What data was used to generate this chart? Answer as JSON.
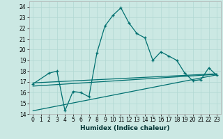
{
  "title": "",
  "xlabel": "Humidex (Indice chaleur)",
  "background_color": "#cbe8e3",
  "line_color": "#007070",
  "grid_color": "#b0d8d2",
  "xlim": [
    -0.5,
    23.5
  ],
  "ylim": [
    14,
    24.5
  ],
  "yticks": [
    14,
    15,
    16,
    17,
    18,
    19,
    20,
    21,
    22,
    23,
    24
  ],
  "xticks": [
    0,
    1,
    2,
    3,
    4,
    5,
    6,
    7,
    8,
    9,
    10,
    11,
    12,
    13,
    14,
    15,
    16,
    17,
    18,
    19,
    20,
    21,
    22,
    23
  ],
  "main_x": [
    0,
    2,
    3,
    4,
    5,
    6,
    7,
    8,
    9,
    10,
    11,
    12,
    13,
    14,
    15,
    16,
    17,
    18,
    19,
    20,
    21,
    22,
    23
  ],
  "main_y": [
    16.8,
    17.8,
    18.0,
    14.3,
    16.1,
    16.0,
    15.6,
    19.7,
    22.2,
    23.2,
    23.9,
    22.5,
    21.5,
    21.1,
    19.0,
    19.8,
    19.4,
    19.0,
    17.8,
    17.1,
    17.2,
    18.3,
    17.6
  ],
  "line1_x": [
    0,
    23
  ],
  "line1_y": [
    16.9,
    17.75
  ],
  "line2_x": [
    0,
    23
  ],
  "line2_y": [
    14.3,
    17.65
  ],
  "line3_x": [
    0,
    23
  ],
  "line3_y": [
    16.6,
    17.7
  ],
  "tick_fontsize": 5.5,
  "xlabel_fontsize": 6.5
}
